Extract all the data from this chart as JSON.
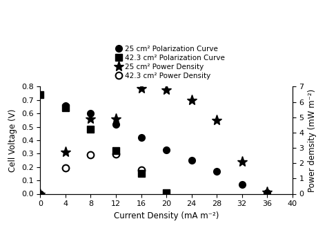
{
  "polarization_25_x": [
    0,
    4,
    8,
    12,
    16,
    20,
    24,
    28,
    32,
    36
  ],
  "polarization_25_y": [
    0.0,
    0.66,
    0.6,
    0.52,
    0.42,
    0.33,
    0.25,
    0.17,
    0.07,
    0.01
  ],
  "polarization_42_x": [
    0,
    4,
    8,
    12,
    16,
    20
  ],
  "polarization_42_y": [
    0.74,
    0.64,
    0.48,
    0.32,
    0.15,
    0.01
  ],
  "power_25_x": [
    0,
    4,
    8,
    12,
    16,
    20,
    24,
    28,
    32,
    36
  ],
  "power_25_y": [
    0.0,
    2.75,
    4.9,
    4.9,
    6.9,
    6.8,
    6.1,
    4.8,
    2.1,
    0.1
  ],
  "power_42_x": [
    0,
    4,
    8,
    12,
    16
  ],
  "power_42_y": [
    0.0,
    1.7,
    2.55,
    2.6,
    1.55
  ],
  "xlabel": "Current Density (mA m⁻²)",
  "ylabel_left": "Cell Voltage (V)",
  "ylabel_right": "Power demsity (mW m⁻²)",
  "xlim": [
    0,
    40
  ],
  "ylim_left": [
    0,
    0.8
  ],
  "ylim_right": [
    0,
    7
  ],
  "xticks": [
    0,
    4,
    8,
    12,
    16,
    20,
    24,
    28,
    32,
    36,
    40
  ],
  "yticks_left": [
    0.0,
    0.1,
    0.2,
    0.3,
    0.4,
    0.5,
    0.6,
    0.7,
    0.8
  ],
  "yticks_right": [
    0,
    1,
    2,
    3,
    4,
    5,
    6,
    7
  ],
  "legend_labels": [
    "25 cm² Polarization Curve",
    "42.3 cm² Polarization Curve",
    "25 cm² Power Density",
    "42.3 cm² Power Density"
  ],
  "color": "black",
  "markersize_pol": 7,
  "markersize_pow": 8,
  "legend_fontsize": 7.5,
  "axis_fontsize": 8.5,
  "tick_fontsize": 8
}
